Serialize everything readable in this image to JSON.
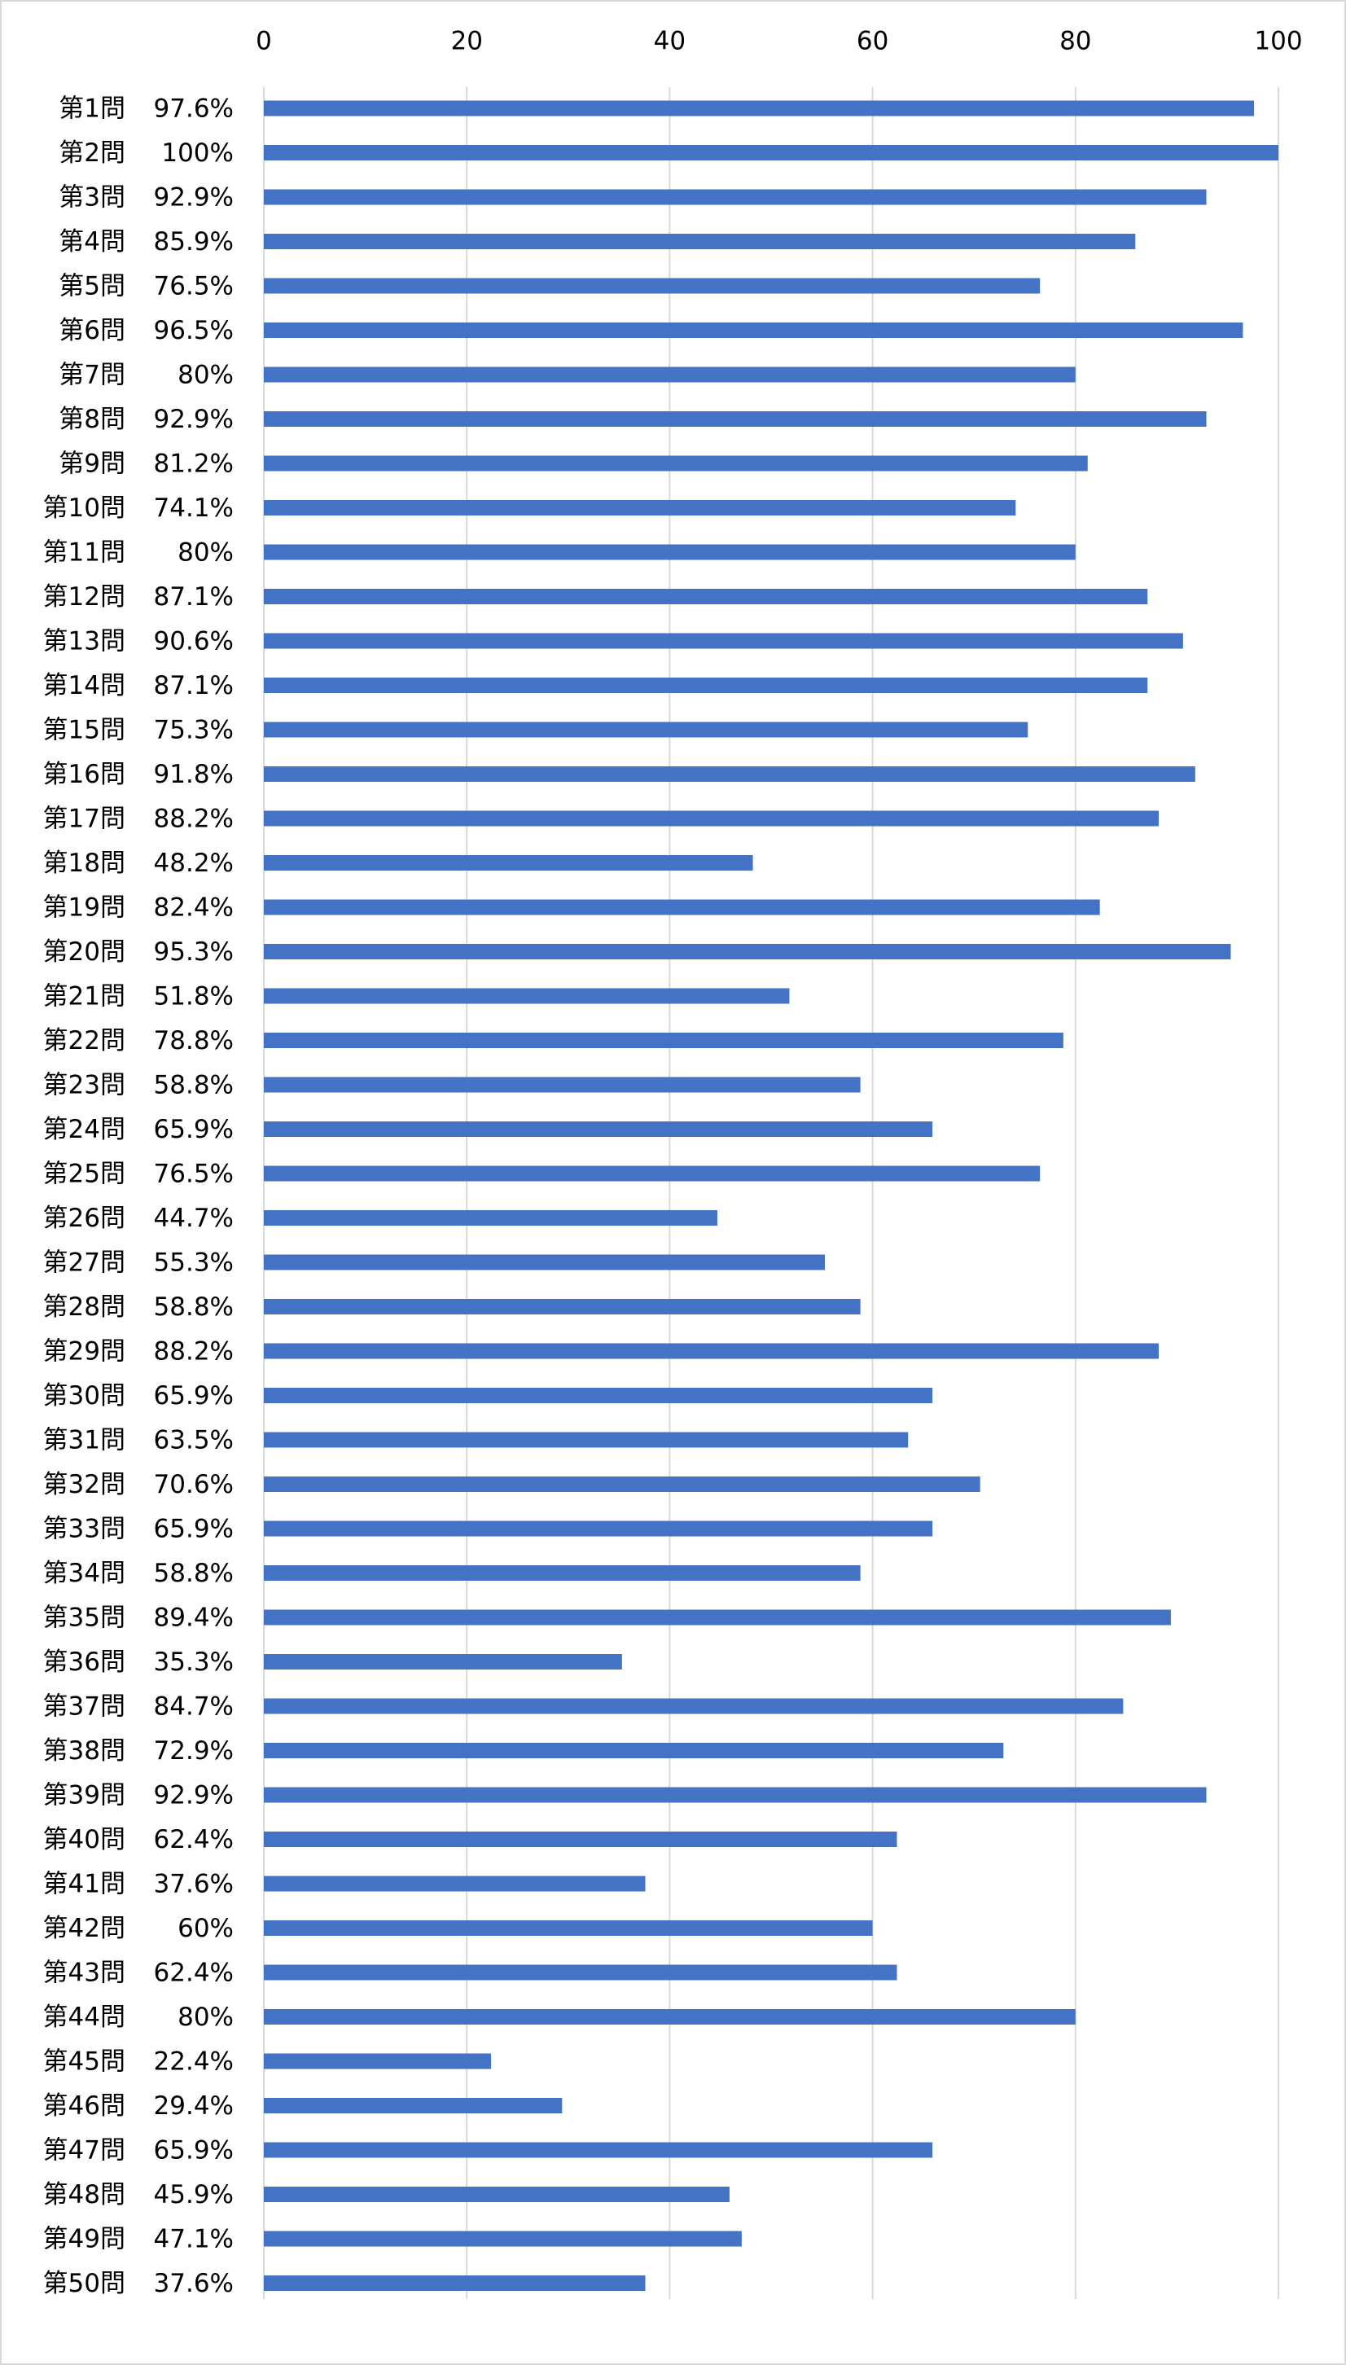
{
  "chart_data": {
    "type": "bar",
    "orientation": "horizontal",
    "categories": [
      "第1問",
      "第2問",
      "第3問",
      "第4問",
      "第5問",
      "第6問",
      "第7問",
      "第8問",
      "第9問",
      "第10問",
      "第11問",
      "第12問",
      "第13問",
      "第14問",
      "第15問",
      "第16問",
      "第17問",
      "第18問",
      "第19問",
      "第20問",
      "第21問",
      "第22問",
      "第23問",
      "第24問",
      "第25問",
      "第26問",
      "第27問",
      "第28問",
      "第29問",
      "第30問",
      "第31問",
      "第32問",
      "第33問",
      "第34問",
      "第35問",
      "第36問",
      "第37問",
      "第38問",
      "第39問",
      "第40問",
      "第41問",
      "第42問",
      "第43問",
      "第44問",
      "第45問",
      "第46問",
      "第47問",
      "第48問",
      "第49問",
      "第50問"
    ],
    "values": [
      97.6,
      100,
      92.9,
      85.9,
      76.5,
      96.5,
      80,
      92.9,
      81.2,
      74.1,
      80,
      87.1,
      90.6,
      87.1,
      75.3,
      91.8,
      88.2,
      48.2,
      82.4,
      95.3,
      51.8,
      78.8,
      58.8,
      65.9,
      76.5,
      44.7,
      55.3,
      58.8,
      88.2,
      65.9,
      63.5,
      70.6,
      65.9,
      58.8,
      89.4,
      35.3,
      84.7,
      72.9,
      92.9,
      62.4,
      37.6,
      60,
      62.4,
      80,
      22.4,
      29.4,
      65.9,
      45.9,
      47.1,
      37.6
    ],
    "value_labels": [
      "97.6%",
      "100%",
      "92.9%",
      "85.9%",
      "76.5%",
      "96.5%",
      "80%",
      "92.9%",
      "81.2%",
      "74.1%",
      "80%",
      "87.1%",
      "90.6%",
      "87.1%",
      "75.3%",
      "91.8%",
      "88.2%",
      "48.2%",
      "82.4%",
      "95.3%",
      "51.8%",
      "78.8%",
      "58.8%",
      "65.9%",
      "76.5%",
      "44.7%",
      "55.3%",
      "58.8%",
      "88.2%",
      "65.9%",
      "63.5%",
      "70.6%",
      "65.9%",
      "58.8%",
      "89.4%",
      "35.3%",
      "84.7%",
      "72.9%",
      "92.9%",
      "62.4%",
      "37.6%",
      "60%",
      "62.4%",
      "80%",
      "22.4%",
      "29.4%",
      "65.9%",
      "45.9%",
      "47.1%",
      "37.6%"
    ],
    "color": "#4472c4",
    "xlim": [
      0,
      100
    ],
    "xticks": [
      0,
      20,
      40,
      60,
      80,
      100
    ],
    "grid": true
  }
}
